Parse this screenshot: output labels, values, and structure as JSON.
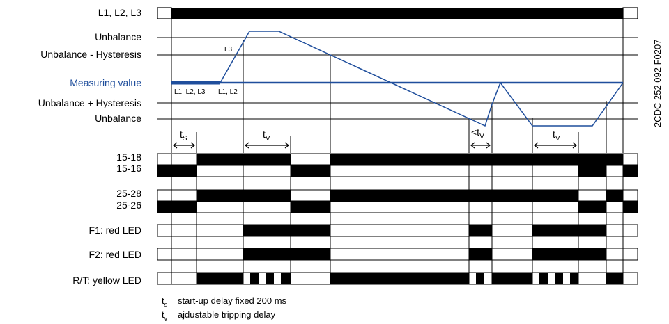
{
  "labels": {
    "l123": "L1, L2, L3",
    "unbalance_top": "Unbalance",
    "unbalance_minus_hyst": "Unbalance - Hysteresis",
    "measuring_value": "Measuring value",
    "unbalance_plus_hyst": "Unbalance + Hysteresis",
    "unbalance_bottom": "Unbalance",
    "r1518": "15-18",
    "r1516": "15-16",
    "r2528": "25-28",
    "r2526": "25-26",
    "f1": "F1: red LED",
    "f2": "F2: red LED",
    "rt": "R/T: yellow LED"
  },
  "annotations": {
    "l3": "L3",
    "l1l2l3": "L1, L2, L3",
    "l1l2": "L1, L2",
    "t": "t",
    "lt": "<t",
    "sub_s": "S",
    "sub_v": "V",
    "sub_v2": "V",
    "sub_v3": "V"
  },
  "figure_code": "2CDC 252 092 F0207",
  "footnotes": {
    "ts_sym": "t",
    "ts_sub": "s",
    "ts_text": " = start-up delay fixed 200 ms",
    "tv_sym": "t",
    "tv_sub": "v",
    "tv_text": " = ajdustable tripping delay"
  },
  "colors": {
    "ink": "#000000",
    "accent": "#1f4e9c"
  }
}
